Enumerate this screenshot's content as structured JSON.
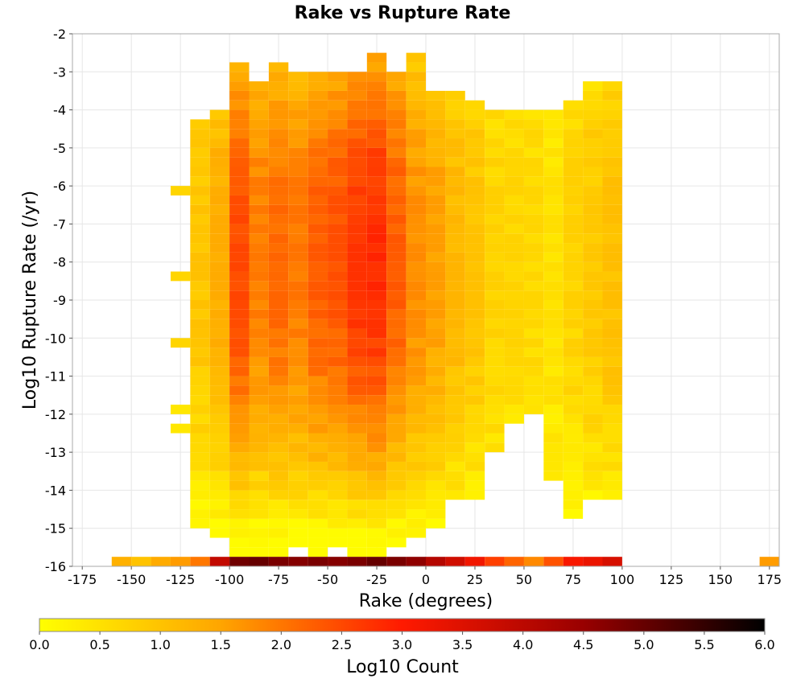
{
  "chart_data": {
    "type": "heatmap",
    "title": "Rake vs Rupture Rate",
    "xlabel": "Rake (degrees)",
    "ylabel": "Log10 Rupture Rate (/yr)",
    "xlim": [
      -180,
      180
    ],
    "ylim": [
      -16,
      -2
    ],
    "x_ticks": [
      "-175",
      "-150",
      "-125",
      "-100",
      "-75",
      "-50",
      "-25",
      "0",
      "25",
      "50",
      "75",
      "100",
      "125",
      "150",
      "175"
    ],
    "y_ticks": [
      "-2",
      "-3",
      "-4",
      "-5",
      "-6",
      "-7",
      "-8",
      "-9",
      "-10",
      "-11",
      "-12",
      "-13",
      "-14",
      "-15",
      "-16"
    ],
    "grid": true,
    "bin_width_x": 10,
    "bin_width_y": 0.25,
    "colorbar": {
      "label": "Log10 Count",
      "range": [
        0,
        6
      ],
      "ticks": [
        "0.0",
        "0.5",
        "1.0",
        "1.5",
        "2.0",
        "2.5",
        "3.0",
        "3.5",
        "4.0",
        "4.5",
        "5.0",
        "5.5",
        "6.0"
      ],
      "colors": [
        "#ffff00",
        "#ffa500",
        "#ff1a00",
        "#990000",
        "#000000"
      ]
    },
    "column_profiles": [
      {
        "x": -115,
        "y_min": -15,
        "y_max": -4.5,
        "peak": 1.05
      },
      {
        "x": -105,
        "y_min": -15.25,
        "y_max": -4.25,
        "peak": 1.4
      },
      {
        "x": -95,
        "y_min": -15.75,
        "y_max": -3,
        "peak": 2.55
      },
      {
        "x": -85,
        "y_min": -15.75,
        "y_max": -3.5,
        "peak": 2.0
      },
      {
        "x": -75,
        "y_min": -15.75,
        "y_max": -3,
        "peak": 2.2
      },
      {
        "x": -65,
        "y_min": -15.5,
        "y_max": -3.25,
        "peak": 2.05
      },
      {
        "x": -55,
        "y_min": -15.75,
        "y_max": -3.25,
        "peak": 2.35
      },
      {
        "x": -45,
        "y_min": -15.5,
        "y_max": -3.25,
        "peak": 2.45
      },
      {
        "x": -35,
        "y_min": -15.75,
        "y_max": -3.25,
        "peak": 2.75
      },
      {
        "x": -25,
        "y_min": -15.75,
        "y_max": -2.75,
        "peak": 2.9
      },
      {
        "x": -15,
        "y_min": -15.5,
        "y_max": -3.25,
        "peak": 2.35
      },
      {
        "x": -5,
        "y_min": -15.25,
        "y_max": -2.75,
        "peak": 1.8
      },
      {
        "x": 5,
        "y_min": -15,
        "y_max": -3.75,
        "peak": 1.6
      },
      {
        "x": 15,
        "y_min": -14.25,
        "y_max": -3.75,
        "peak": 1.25
      },
      {
        "x": 25,
        "y_min": -14.25,
        "y_max": -4,
        "peak": 1.05
      },
      {
        "x": 35,
        "y_min": -13,
        "y_max": -4.25,
        "peak": 0.8
      },
      {
        "x": 45,
        "y_min": -12.25,
        "y_max": -4.25,
        "peak": 0.75
      },
      {
        "x": 55,
        "y_min": -12,
        "y_max": -4.25,
        "peak": 0.7
      },
      {
        "x": 65,
        "y_min": -13.75,
        "y_max": -4.25,
        "peak": 0.55
      },
      {
        "x": 75,
        "y_min": -14.75,
        "y_max": -4,
        "peak": 0.8
      },
      {
        "x": 85,
        "y_min": -14.25,
        "y_max": -3.5,
        "peak": 0.95
      },
      {
        "x": 95,
        "y_min": -14.25,
        "y_max": -3.5,
        "peak": 1.1
      }
    ],
    "isolated_bins": [
      {
        "x": -125,
        "y": -6.25,
        "value": 0.7
      },
      {
        "x": -125,
        "y": -8.5,
        "value": 0.7
      },
      {
        "x": -125,
        "y": -10.25,
        "value": 0.7
      },
      {
        "x": -125,
        "y": -12,
        "value": 0.4
      },
      {
        "x": -125,
        "y": -12.5,
        "value": 0.4
      }
    ],
    "bottom_row": {
      "y": -16,
      "bins": [
        {
          "x": -155,
          "value": 1.3
        },
        {
          "x": -145,
          "value": 1.0
        },
        {
          "x": -135,
          "value": 1.4
        },
        {
          "x": -125,
          "value": 1.6
        },
        {
          "x": -115,
          "value": 2.0
        },
        {
          "x": -105,
          "value": 3.9
        },
        {
          "x": -95,
          "value": 4.9
        },
        {
          "x": -85,
          "value": 5.0
        },
        {
          "x": -75,
          "value": 4.8
        },
        {
          "x": -65,
          "value": 4.7
        },
        {
          "x": -55,
          "value": 4.8
        },
        {
          "x": -45,
          "value": 4.7
        },
        {
          "x": -35,
          "value": 4.8
        },
        {
          "x": -25,
          "value": 5.0
        },
        {
          "x": -15,
          "value": 4.8
        },
        {
          "x": -5,
          "value": 4.6
        },
        {
          "x": 5,
          "value": 4.1
        },
        {
          "x": 15,
          "value": 3.7
        },
        {
          "x": 25,
          "value": 3.2
        },
        {
          "x": 35,
          "value": 2.6
        },
        {
          "x": 45,
          "value": 2.2
        },
        {
          "x": 55,
          "value": 1.8
        },
        {
          "x": 65,
          "value": 2.4
        },
        {
          "x": 75,
          "value": 3.1
        },
        {
          "x": 85,
          "value": 3.3
        },
        {
          "x": 95,
          "value": 3.6
        },
        {
          "x": 175,
          "value": 1.6
        }
      ]
    }
  }
}
